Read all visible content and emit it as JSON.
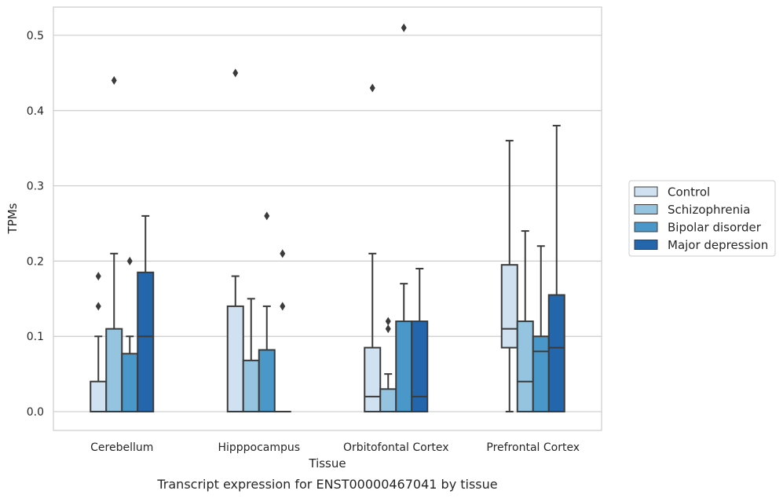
{
  "chart_data": {
    "type": "box",
    "title": "",
    "caption": "Transcript expression for ENST00000467041 by tissue",
    "xlabel": "Tissue",
    "ylabel": "TPMs",
    "ylim": [
      -0.025,
      0.5375
    ],
    "yticks": [
      0.0,
      0.1,
      0.2,
      0.3,
      0.4,
      0.5
    ],
    "ytick_labels": [
      "0.0",
      "0.1",
      "0.2",
      "0.3",
      "0.4",
      "0.5"
    ],
    "grid": true,
    "legend_position": "right",
    "categories": [
      "Cerebellum",
      "Hipppocampus",
      "Orbitofontal Cortex",
      "Prefrontal Cortex"
    ],
    "series": [
      {
        "name": "Control",
        "color": "#d0e1f2",
        "boxes": [
          {
            "q1": 0.0,
            "median": 0.0,
            "q3": 0.04,
            "whisker_low": 0.0,
            "whisker_high": 0.1,
            "outliers": [
              0.14,
              0.18
            ]
          },
          {
            "q1": 0.0,
            "median": 0.0,
            "q3": 0.14,
            "whisker_low": 0.0,
            "whisker_high": 0.18,
            "outliers": [
              0.45
            ]
          },
          {
            "q1": 0.0,
            "median": 0.02,
            "q3": 0.085,
            "whisker_low": 0.0,
            "whisker_high": 0.21,
            "outliers": [
              0.43
            ]
          },
          {
            "q1": 0.085,
            "median": 0.11,
            "q3": 0.195,
            "whisker_low": 0.0,
            "whisker_high": 0.36,
            "outliers": []
          }
        ]
      },
      {
        "name": "Schizophrenia",
        "color": "#94c4df",
        "boxes": [
          {
            "q1": 0.0,
            "median": 0.0,
            "q3": 0.11,
            "whisker_low": 0.0,
            "whisker_high": 0.21,
            "outliers": [
              0.44
            ]
          },
          {
            "q1": 0.0,
            "median": 0.0,
            "q3": 0.068,
            "whisker_low": 0.0,
            "whisker_high": 0.15,
            "outliers": []
          },
          {
            "q1": 0.0,
            "median": 0.0,
            "q3": 0.03,
            "whisker_low": 0.0,
            "whisker_high": 0.05,
            "outliers": [
              0.11,
              0.12
            ]
          },
          {
            "q1": 0.0,
            "median": 0.04,
            "q3": 0.12,
            "whisker_low": 0.0,
            "whisker_high": 0.24,
            "outliers": []
          }
        ]
      },
      {
        "name": "Bipolar disorder",
        "color": "#4a98c9",
        "boxes": [
          {
            "q1": 0.0,
            "median": 0.0,
            "q3": 0.077,
            "whisker_low": 0.0,
            "whisker_high": 0.1,
            "outliers": [
              0.2
            ]
          },
          {
            "q1": 0.0,
            "median": 0.0,
            "q3": 0.082,
            "whisker_low": 0.0,
            "whisker_high": 0.14,
            "outliers": [
              0.26
            ]
          },
          {
            "q1": 0.0,
            "median": 0.0,
            "q3": 0.12,
            "whisker_low": 0.0,
            "whisker_high": 0.17,
            "outliers": [
              0.51
            ]
          },
          {
            "q1": 0.0,
            "median": 0.08,
            "q3": 0.1,
            "whisker_low": 0.0,
            "whisker_high": 0.22,
            "outliers": []
          }
        ]
      },
      {
        "name": "Major depression",
        "color": "#2366ac",
        "boxes": [
          {
            "q1": 0.0,
            "median": 0.1,
            "q3": 0.185,
            "whisker_low": 0.0,
            "whisker_high": 0.26,
            "outliers": []
          },
          {
            "q1": 0.0,
            "median": 0.0,
            "q3": 0.0,
            "whisker_low": 0.0,
            "whisker_high": 0.0,
            "outliers": [
              0.14,
              0.21
            ]
          },
          {
            "q1": 0.0,
            "median": 0.02,
            "q3": 0.12,
            "whisker_low": 0.0,
            "whisker_high": 0.19,
            "outliers": []
          },
          {
            "q1": 0.0,
            "median": 0.085,
            "q3": 0.155,
            "whisker_low": 0.0,
            "whisker_high": 0.38,
            "outliers": []
          }
        ]
      }
    ]
  }
}
